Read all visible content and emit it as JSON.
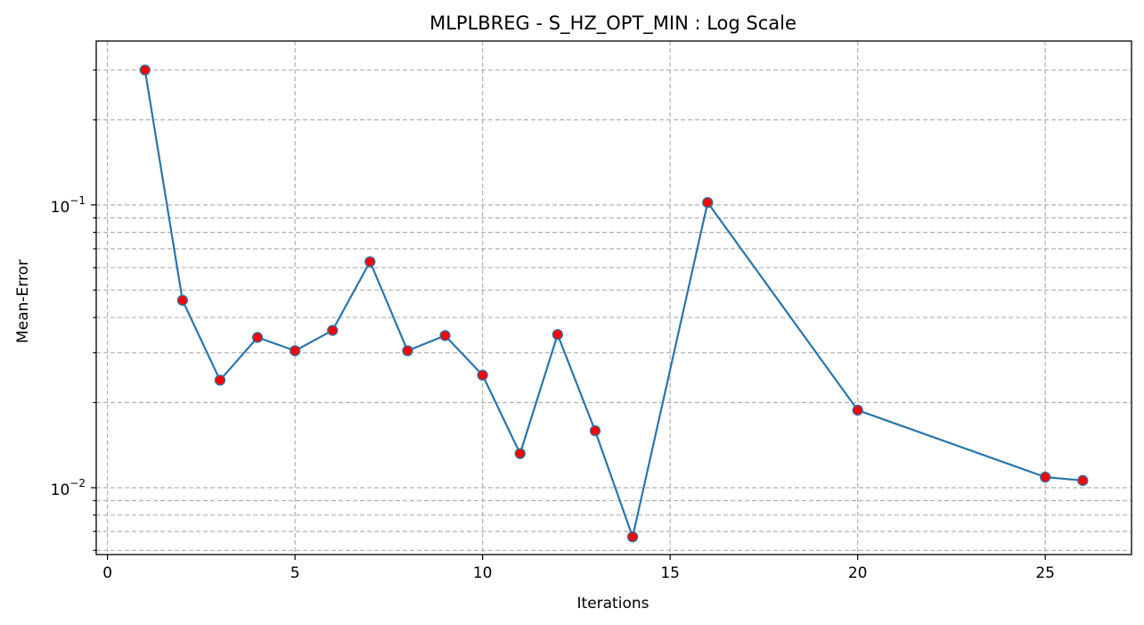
{
  "chart_data": {
    "type": "line",
    "title": "MLPLBREG - S_HZ_OPT_MIN : Log Scale",
    "xlabel": "Iterations",
    "ylabel": "Mean-Error",
    "yscale": "log",
    "xlim": [
      -0.3,
      27.3
    ],
    "ylim": [
      0.0058,
      0.38
    ],
    "grid": true,
    "x_ticks": [
      0,
      5,
      10,
      15,
      20,
      25
    ],
    "y_major_ticks": [
      {
        "value": 0.01,
        "base": "10",
        "exp": "−2"
      },
      {
        "value": 0.1,
        "base": "10",
        "exp": "−1"
      }
    ],
    "y_minor_ticks": [
      0.006,
      0.007,
      0.008,
      0.009,
      0.02,
      0.03,
      0.04,
      0.05,
      0.06,
      0.07,
      0.08,
      0.09,
      0.2,
      0.3
    ],
    "series": [
      {
        "line_color": "#2a75aa",
        "marker_color": "#ff0000",
        "marker_edge_color": "#2a75aa",
        "x": [
          1,
          2,
          3,
          4,
          5,
          6,
          7,
          8,
          9,
          10,
          11,
          12,
          13,
          14,
          16,
          20,
          25,
          26
        ],
        "y": [
          0.3,
          0.046,
          0.024,
          0.034,
          0.0305,
          0.036,
          0.063,
          0.0305,
          0.0345,
          0.025,
          0.0132,
          0.0348,
          0.0159,
          0.0067,
          0.102,
          0.0188,
          0.0109,
          0.0106
        ]
      }
    ]
  }
}
